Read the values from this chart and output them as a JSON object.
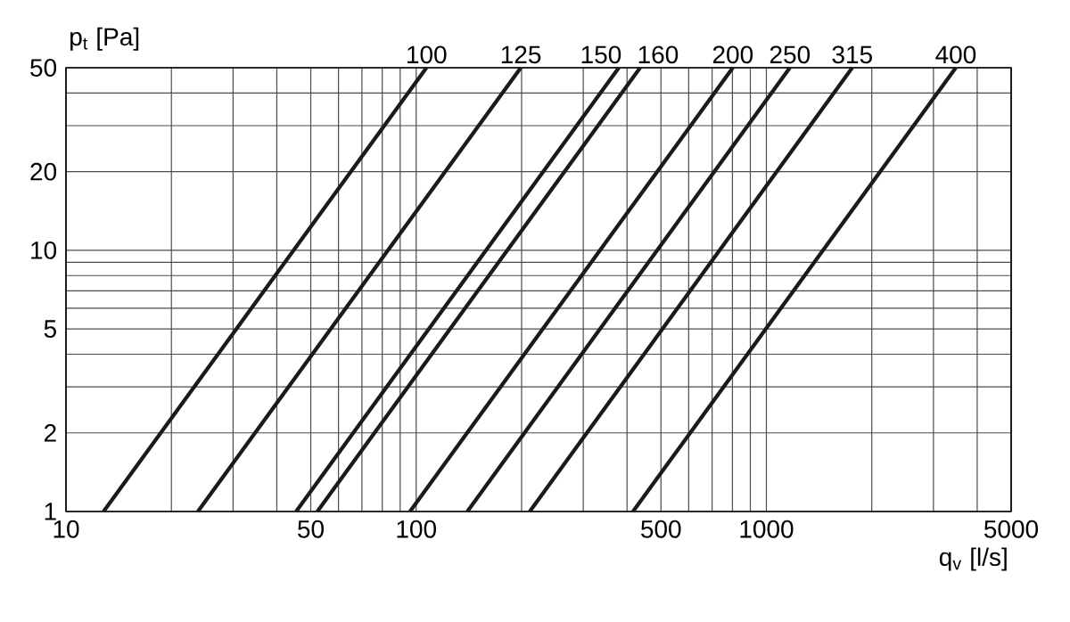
{
  "chart_data": {
    "type": "line",
    "xlabel": "q$_{v}$ [l/s]",
    "ylabel": "p$_{t}$ [Pa]",
    "log": "xy",
    "grid": true,
    "xlim": [
      10,
      5000
    ],
    "ylim": [
      1,
      50
    ],
    "xticks": [
      10,
      {
        "value": 20,
        "label": null
      },
      {
        "value": 30,
        "label": null
      },
      {
        "value": 40,
        "label": null
      },
      50,
      {
        "value": 60,
        "label": null
      },
      {
        "value": 70,
        "label": null
      },
      {
        "value": 80,
        "label": null
      },
      {
        "value": 90,
        "label": null
      },
      100,
      {
        "value": 200,
        "label": null
      },
      {
        "value": 300,
        "label": null
      },
      {
        "value": 400,
        "label": null
      },
      500,
      {
        "value": 600,
        "label": null
      },
      {
        "value": 700,
        "label": null
      },
      {
        "value": 800,
        "label": null
      },
      {
        "value": 900,
        "label": null
      },
      1000,
      {
        "value": 2000,
        "label": null
      },
      {
        "value": 3000,
        "label": null
      },
      {
        "value": 4000,
        "label": null
      },
      5000
    ],
    "yticks": [
      1,
      2,
      {
        "value": 3,
        "label": null
      },
      {
        "value": 4,
        "label": null
      },
      5,
      {
        "value": 6,
        "label": null
      },
      {
        "value": 7,
        "label": null
      },
      {
        "value": 8,
        "label": null
      },
      {
        "value": 9,
        "label": null
      },
      10,
      20,
      {
        "value": 30,
        "label": null
      },
      {
        "value": 40,
        "label": null
      },
      50
    ],
    "series": [
      {
        "name": "100",
        "color": "#1a1a1a",
        "x": [
          12.8,
          107
        ],
        "values": [
          1,
          50
        ]
      },
      {
        "name": "125",
        "color": "#1a1a1a",
        "x": [
          23.8,
          199
        ],
        "values": [
          1,
          50
        ]
      },
      {
        "name": "150",
        "color": "#1a1a1a",
        "x": [
          45.4,
          379
        ],
        "values": [
          1,
          50
        ]
      },
      {
        "name": "160",
        "color": "#1a1a1a",
        "x": [
          52.2,
          436
        ],
        "values": [
          1,
          50
        ]
      },
      {
        "name": "200",
        "color": "#1a1a1a",
        "x": [
          96,
          802
        ],
        "values": [
          1,
          50
        ]
      },
      {
        "name": "250",
        "color": "#1a1a1a",
        "x": [
          140,
          1167
        ],
        "values": [
          1,
          50
        ]
      },
      {
        "name": "315",
        "color": "#1a1a1a",
        "x": [
          211,
          1759
        ],
        "values": [
          1,
          50
        ]
      },
      {
        "name": "400",
        "color": "#1a1a1a",
        "x": [
          416,
          3475
        ],
        "values": [
          1,
          50
        ]
      }
    ]
  }
}
